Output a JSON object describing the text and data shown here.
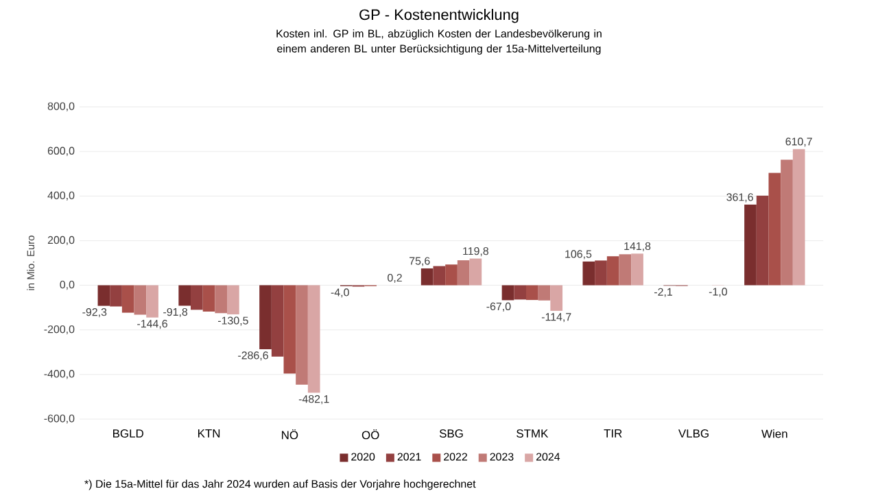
{
  "chart_data": {
    "type": "bar",
    "title": "GP - Kostenentwicklung",
    "subtitle": "Kosten inl. GP im BL, abzüglich Kosten der Landesbevölkerung in einem anderen BL unter Berücksichtigung der 15a-Mittelverteilung",
    "ylabel": "in Mio. Euro",
    "categories": [
      "BGLD",
      "KTN",
      "NÖ",
      "OÖ",
      "SBG",
      "STMK",
      "TIR",
      "VLBG",
      "Wien"
    ],
    "series": [
      {
        "name": "2020",
        "color": "#7a2e2e",
        "values": [
          -92.3,
          -91.8,
          -286.6,
          -4.0,
          75.6,
          -67.0,
          106.5,
          -2.1,
          361.6
        ],
        "value_labels": [
          "-92,3",
          "-91,8",
          "-286,6",
          "-4,0",
          "75,6",
          "-67,0",
          "106,5",
          "-2,1",
          "361,6"
        ]
      },
      {
        "name": "2021",
        "color": "#934040",
        "values": [
          -95,
          -110,
          -320,
          -6,
          86,
          -64,
          111,
          -3,
          402
        ]
      },
      {
        "name": "2022",
        "color": "#a9504a",
        "values": [
          -123,
          -118,
          -396,
          -4,
          93,
          -66,
          130,
          null,
          504
        ]
      },
      {
        "name": "2023",
        "color": "#c07a76",
        "values": [
          -132,
          -125,
          -446,
          null,
          112,
          -68,
          139,
          null,
          563
        ]
      },
      {
        "name": "2024",
        "color": "#d9a6a5",
        "values": [
          -144.6,
          -130.5,
          -482.1,
          0.2,
          119.8,
          -114.7,
          141.8,
          -1.0,
          610.7
        ],
        "value_labels": [
          "-144,6",
          "-130,5",
          "-482,1",
          "0,2",
          "119,8",
          "-114,7",
          "141,8",
          "-1,0",
          "610,7"
        ]
      }
    ],
    "ylim": [
      -600,
      800
    ],
    "yticks": [
      {
        "value": -600,
        "label": "-600,0"
      },
      {
        "value": -400,
        "label": "-400,0"
      },
      {
        "value": -200,
        "label": "-200,0"
      },
      {
        "value": 0,
        "label": "0,0"
      },
      {
        "value": 200,
        "label": "200,0"
      },
      {
        "value": 400,
        "label": "400,0"
      },
      {
        "value": 600,
        "label": "600,0"
      },
      {
        "value": 800,
        "label": "800,0"
      }
    ],
    "grid": "y",
    "legend": "bottom",
    "annotations": [
      "*) Die 15a-Mittel für das Jahr 2024 wurden auf Basis der Vorjahre hochgerechnet"
    ]
  }
}
